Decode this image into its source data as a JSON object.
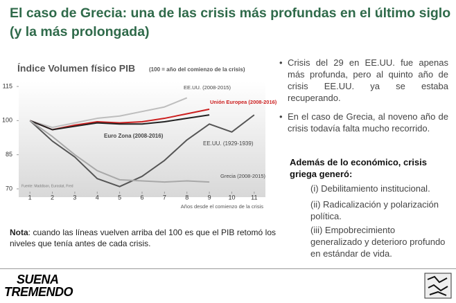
{
  "slide": {
    "title": "El caso de Grecia: una de las crisis más profundas en el último siglo (y la más prolongada)",
    "bullets": [
      "Crisis del 29 en EE.UU. fue apenas más profunda, pero al quinto año de crisis EE.UU. ya se estaba recuperando.",
      "En el caso de Grecia, al noveno año de crisis todavía falta mucho recorrido."
    ],
    "subheading": "Además de lo económico, crisis griega generó:",
    "items": [
      "(i) Debilitamiento institucional.",
      "(ii) Radicalización y polarización política.",
      "(iii) Empobrecimiento generalizado y deterioro profundo en estándar de vida."
    ],
    "note": {
      "label": "Nota",
      "text": ": cuando las líneas vuelven arriba del 100 es que el PIB retomó los niveles que tenía antes de cada crisis."
    },
    "logo": [
      "SUENA",
      "TREMENDO"
    ]
  },
  "chart_data": {
    "type": "line",
    "title": "Índice Volumen físico PIB",
    "subtitle": "(100 = año del comienzo de la crisis)",
    "x_label": "Años desde el comienzo de la crisis",
    "source": "Fuente: Maddison, Eurostat, Fred",
    "x": [
      1,
      2,
      3,
      4,
      5,
      6,
      7,
      8,
      9,
      10,
      11
    ],
    "xlim": [
      0.5,
      11.5
    ],
    "xticks": [
      1,
      2,
      3,
      4,
      5,
      6,
      7,
      8,
      9,
      10,
      11
    ],
    "ylim": [
      70,
      115
    ],
    "yticks": [
      70,
      85,
      100,
      115
    ],
    "series": [
      {
        "name": "EE.UU. (2008-2015)",
        "color": "#bdbdbd",
        "values": [
          100,
          97,
          99,
          101,
          102,
          104,
          106,
          110,
          null,
          null,
          null
        ]
      },
      {
        "name": "Unión Europea (2008-2016)",
        "color": "#cc1f1f",
        "values": [
          100,
          96,
          98,
          99.5,
          99,
          99.5,
          101,
          103,
          105,
          null,
          null
        ]
      },
      {
        "name": "Euro Zona (2008-2016)",
        "color": "#222222",
        "values": [
          100,
          96,
          97.5,
          99,
          98.5,
          98.5,
          99.5,
          101,
          102.5,
          null,
          null
        ]
      },
      {
        "name": "EE.UU. (1929-1939)",
        "color": "#555555",
        "values": [
          100,
          91,
          84,
          74.5,
          71,
          75.5,
          82.5,
          91.5,
          98.5,
          95,
          102.5
        ]
      },
      {
        "name": "Grecia (2008-2015)",
        "color": "#a8a8a8",
        "values": [
          100,
          93,
          85,
          78,
          74,
          73.5,
          73,
          73.5,
          73,
          null,
          null
        ]
      }
    ]
  }
}
